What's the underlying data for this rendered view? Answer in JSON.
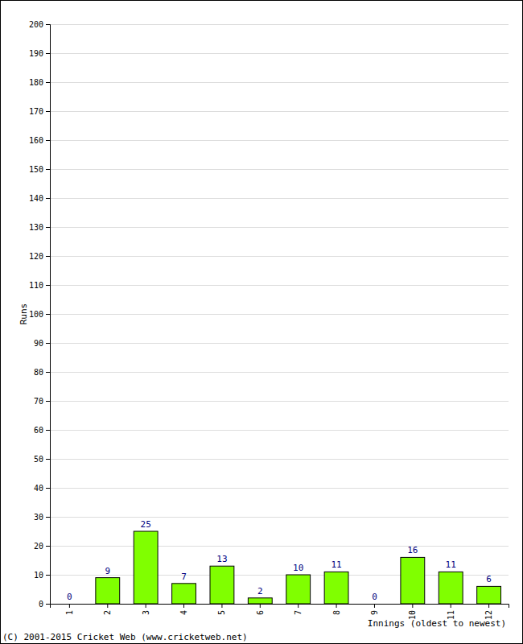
{
  "chart_data": {
    "type": "bar",
    "x_label": "Innings (oldest to newest)",
    "y_label": "Runs",
    "annotations": [
      "(C) 2001-2015 Cricket Web (www.cricketweb.net)"
    ],
    "categories": [
      "1",
      "2",
      "3",
      "4",
      "5",
      "6",
      "7",
      "8",
      "9",
      "10",
      "11",
      "12"
    ],
    "values": [
      0,
      9,
      25,
      7,
      13,
      2,
      10,
      11,
      0,
      16,
      11,
      6
    ],
    "color": "#80ff00",
    "ylim": [
      0,
      200
    ],
    "yticks": [
      0,
      10,
      20,
      30,
      40,
      50,
      60,
      70,
      80,
      90,
      100,
      110,
      120,
      130,
      140,
      150,
      160,
      170,
      180,
      190,
      200
    ],
    "grid": true,
    "data_labels": true
  }
}
